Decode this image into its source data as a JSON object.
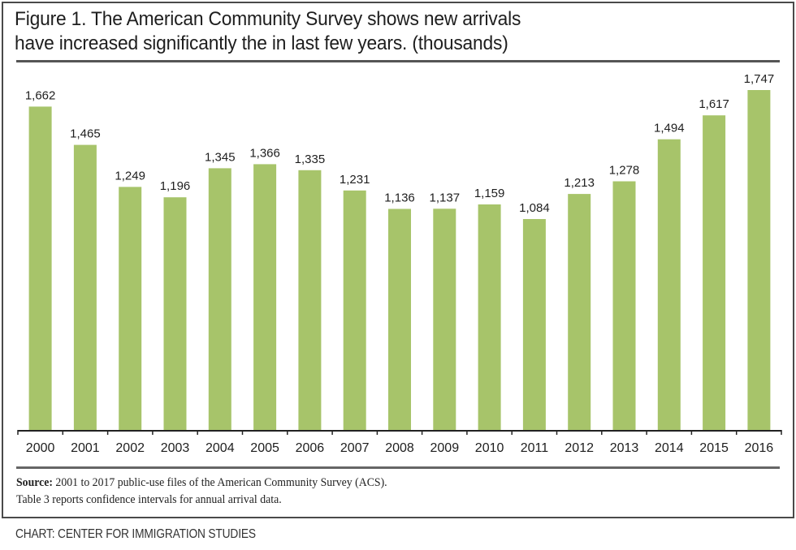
{
  "chart_data": {
    "type": "bar",
    "title": "Figure 1. The American Community Survey shows new arrivals have increased significantly the in last few years. (thousands)",
    "title_lines": [
      "Figure 1. The American Community Survey shows new arrivals",
      "have increased significantly the in last few years. (thousands)"
    ],
    "categories": [
      "2000",
      "2001",
      "2002",
      "2003",
      "2004",
      "2005",
      "2006",
      "2007",
      "2008",
      "2009",
      "2010",
      "2011",
      "2012",
      "2013",
      "2014",
      "2015",
      "2016"
    ],
    "values": [
      1662,
      1465,
      1249,
      1196,
      1345,
      1366,
      1335,
      1231,
      1136,
      1137,
      1159,
      1084,
      1213,
      1278,
      1494,
      1617,
      1747
    ],
    "data_labels": [
      "1,662",
      "1,465",
      "1,249",
      "1,196",
      "1,345",
      "1,366",
      "1,335",
      "1,231",
      "1,136",
      "1,137",
      "1,159",
      "1,084",
      "1,213",
      "1,278",
      "1,494",
      "1,617",
      "1,747"
    ],
    "xlabel": "",
    "ylabel": "",
    "units": "thousands",
    "ylim": [
      0,
      1747
    ],
    "grid": false,
    "legend": "none",
    "bar_color": "#a7c46a",
    "axis_color": "#222222"
  },
  "source": {
    "label": "Source:",
    "line1": " 2001 to 2017 public-use files of the American Community  Survey (ACS).",
    "line2": "Table 3 reports confidence intervals for annual arrival data."
  },
  "credit": "CHART: CENTER FOR IMMIGRATION STUDIES"
}
